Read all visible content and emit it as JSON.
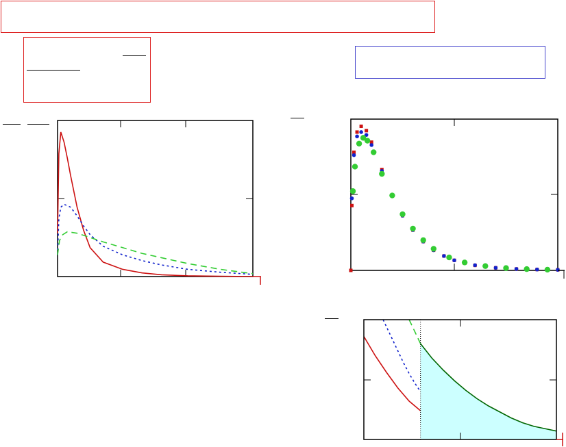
{
  "page": {
    "background": "#ffffff"
  },
  "colors": {
    "red": "#cc1111",
    "blue": "#1122cc",
    "green": "#33cc33",
    "fill": "#ccffff",
    "title_box_border": "#dd2222",
    "info_box_border": "#4444cc"
  },
  "chart_data": [
    {
      "type": "line",
      "name": "chart-density-three-parameters",
      "grid": false,
      "series": [
        {
          "color": "red",
          "style": "solid",
          "x": [
            0.0,
            0.02,
            0.05,
            0.1,
            0.15,
            0.2,
            0.3,
            0.4,
            0.5,
            0.7,
            1.0,
            1.3,
            1.6,
            2.0,
            2.5,
            3.0
          ],
          "y": [
            0.3,
            0.85,
            1.0,
            0.93,
            0.82,
            0.7,
            0.48,
            0.32,
            0.2,
            0.1,
            0.05,
            0.025,
            0.012,
            0.005,
            0.002,
            0.0
          ]
        },
        {
          "color": "blue",
          "style": "dotted",
          "x": [
            0.0,
            0.02,
            0.05,
            0.1,
            0.2,
            0.3,
            0.4,
            0.5,
            0.7,
            1.0,
            1.3,
            1.6,
            2.0,
            2.5,
            3.0
          ],
          "y": [
            0.15,
            0.4,
            0.48,
            0.5,
            0.48,
            0.42,
            0.35,
            0.29,
            0.21,
            0.15,
            0.11,
            0.08,
            0.05,
            0.03,
            0.015
          ]
        },
        {
          "color": "green",
          "style": "dashed",
          "x": [
            0.0,
            0.03,
            0.08,
            0.15,
            0.3,
            0.5,
            0.7,
            1.0,
            1.3,
            1.6,
            2.0,
            2.5,
            3.0
          ],
          "y": [
            0.15,
            0.25,
            0.29,
            0.31,
            0.3,
            0.27,
            0.24,
            0.2,
            0.16,
            0.13,
            0.09,
            0.05,
            0.02
          ]
        }
      ],
      "xlim": [
        0,
        3
      ],
      "ylim": [
        0,
        1.08
      ]
    },
    {
      "type": "scatter",
      "name": "chart-density-overlay",
      "grid": false,
      "series": [
        {
          "color": "red",
          "x": [
            0.0,
            0.01,
            0.03,
            0.06,
            0.1,
            0.15,
            0.2,
            0.3,
            0.4,
            0.5,
            0.6,
            0.7,
            0.8,
            0.9,
            1.0,
            1.1,
            1.2,
            1.3,
            1.4,
            1.5,
            1.6,
            1.7,
            1.8,
            1.9,
            2.0
          ],
          "y": [
            0.0,
            0.45,
            0.82,
            0.96,
            1.0,
            0.97,
            0.89,
            0.7,
            0.52,
            0.38,
            0.28,
            0.2,
            0.14,
            0.1,
            0.07,
            0.05,
            0.035,
            0.025,
            0.018,
            0.013,
            0.01,
            0.008,
            0.006,
            0.005,
            0.004
          ]
        },
        {
          "color": "blue",
          "x": [
            0.01,
            0.03,
            0.06,
            0.1,
            0.15,
            0.2,
            0.3,
            0.4,
            0.5,
            0.6,
            0.7,
            0.8,
            0.9,
            1.0,
            1.2,
            1.4,
            1.6,
            1.8,
            2.0
          ],
          "y": [
            0.5,
            0.8,
            0.93,
            0.96,
            0.94,
            0.87,
            0.69,
            0.52,
            0.38,
            0.28,
            0.2,
            0.14,
            0.1,
            0.07,
            0.036,
            0.018,
            0.01,
            0.006,
            0.004
          ]
        },
        {
          "color": "green",
          "x": [
            0.02,
            0.04,
            0.08,
            0.12,
            0.16,
            0.22,
            0.3,
            0.4,
            0.5,
            0.6,
            0.7,
            0.8,
            0.95,
            1.1,
            1.3,
            1.5,
            1.7,
            1.9
          ],
          "y": [
            0.55,
            0.72,
            0.88,
            0.92,
            0.9,
            0.82,
            0.67,
            0.52,
            0.39,
            0.29,
            0.21,
            0.15,
            0.09,
            0.055,
            0.03,
            0.016,
            0.009,
            0.005
          ]
        }
      ],
      "xlim": [
        0,
        2
      ],
      "ylim": [
        0,
        1.05
      ]
    },
    {
      "type": "area",
      "name": "chart-tail",
      "grid": false,
      "series": [
        {
          "color": "red",
          "style": "solid",
          "x": [
            0.0,
            0.05,
            0.1,
            0.2,
            0.3,
            0.4,
            0.5
          ],
          "y": [
            0.86,
            0.78,
            0.7,
            0.56,
            0.43,
            0.32,
            0.24
          ]
        },
        {
          "color": "blue",
          "style": "dotted",
          "x": [
            0.17,
            0.2,
            0.25,
            0.3,
            0.35,
            0.4,
            0.45,
            0.5
          ],
          "y": [
            1.0,
            0.94,
            0.84,
            0.74,
            0.64,
            0.55,
            0.47,
            0.4
          ]
        },
        {
          "color": "green",
          "style": "dashed",
          "x": [
            0.4,
            0.42,
            0.45,
            0.48,
            0.5
          ],
          "y": [
            1.0,
            0.96,
            0.9,
            0.84,
            0.8
          ]
        },
        {
          "color": "darkgreen",
          "style": "solid",
          "filled": true,
          "x": [
            0.5,
            0.6,
            0.7,
            0.8,
            0.9,
            1.0,
            1.1,
            1.2,
            1.3,
            1.4,
            1.5,
            1.6,
            1.7
          ],
          "y": [
            0.8,
            0.68,
            0.58,
            0.49,
            0.41,
            0.34,
            0.28,
            0.23,
            0.18,
            0.14,
            0.11,
            0.09,
            0.07
          ]
        }
      ],
      "threshold_x": 0.5,
      "xlim": [
        0,
        1.7
      ],
      "ylim": [
        0,
        1.0
      ]
    }
  ]
}
